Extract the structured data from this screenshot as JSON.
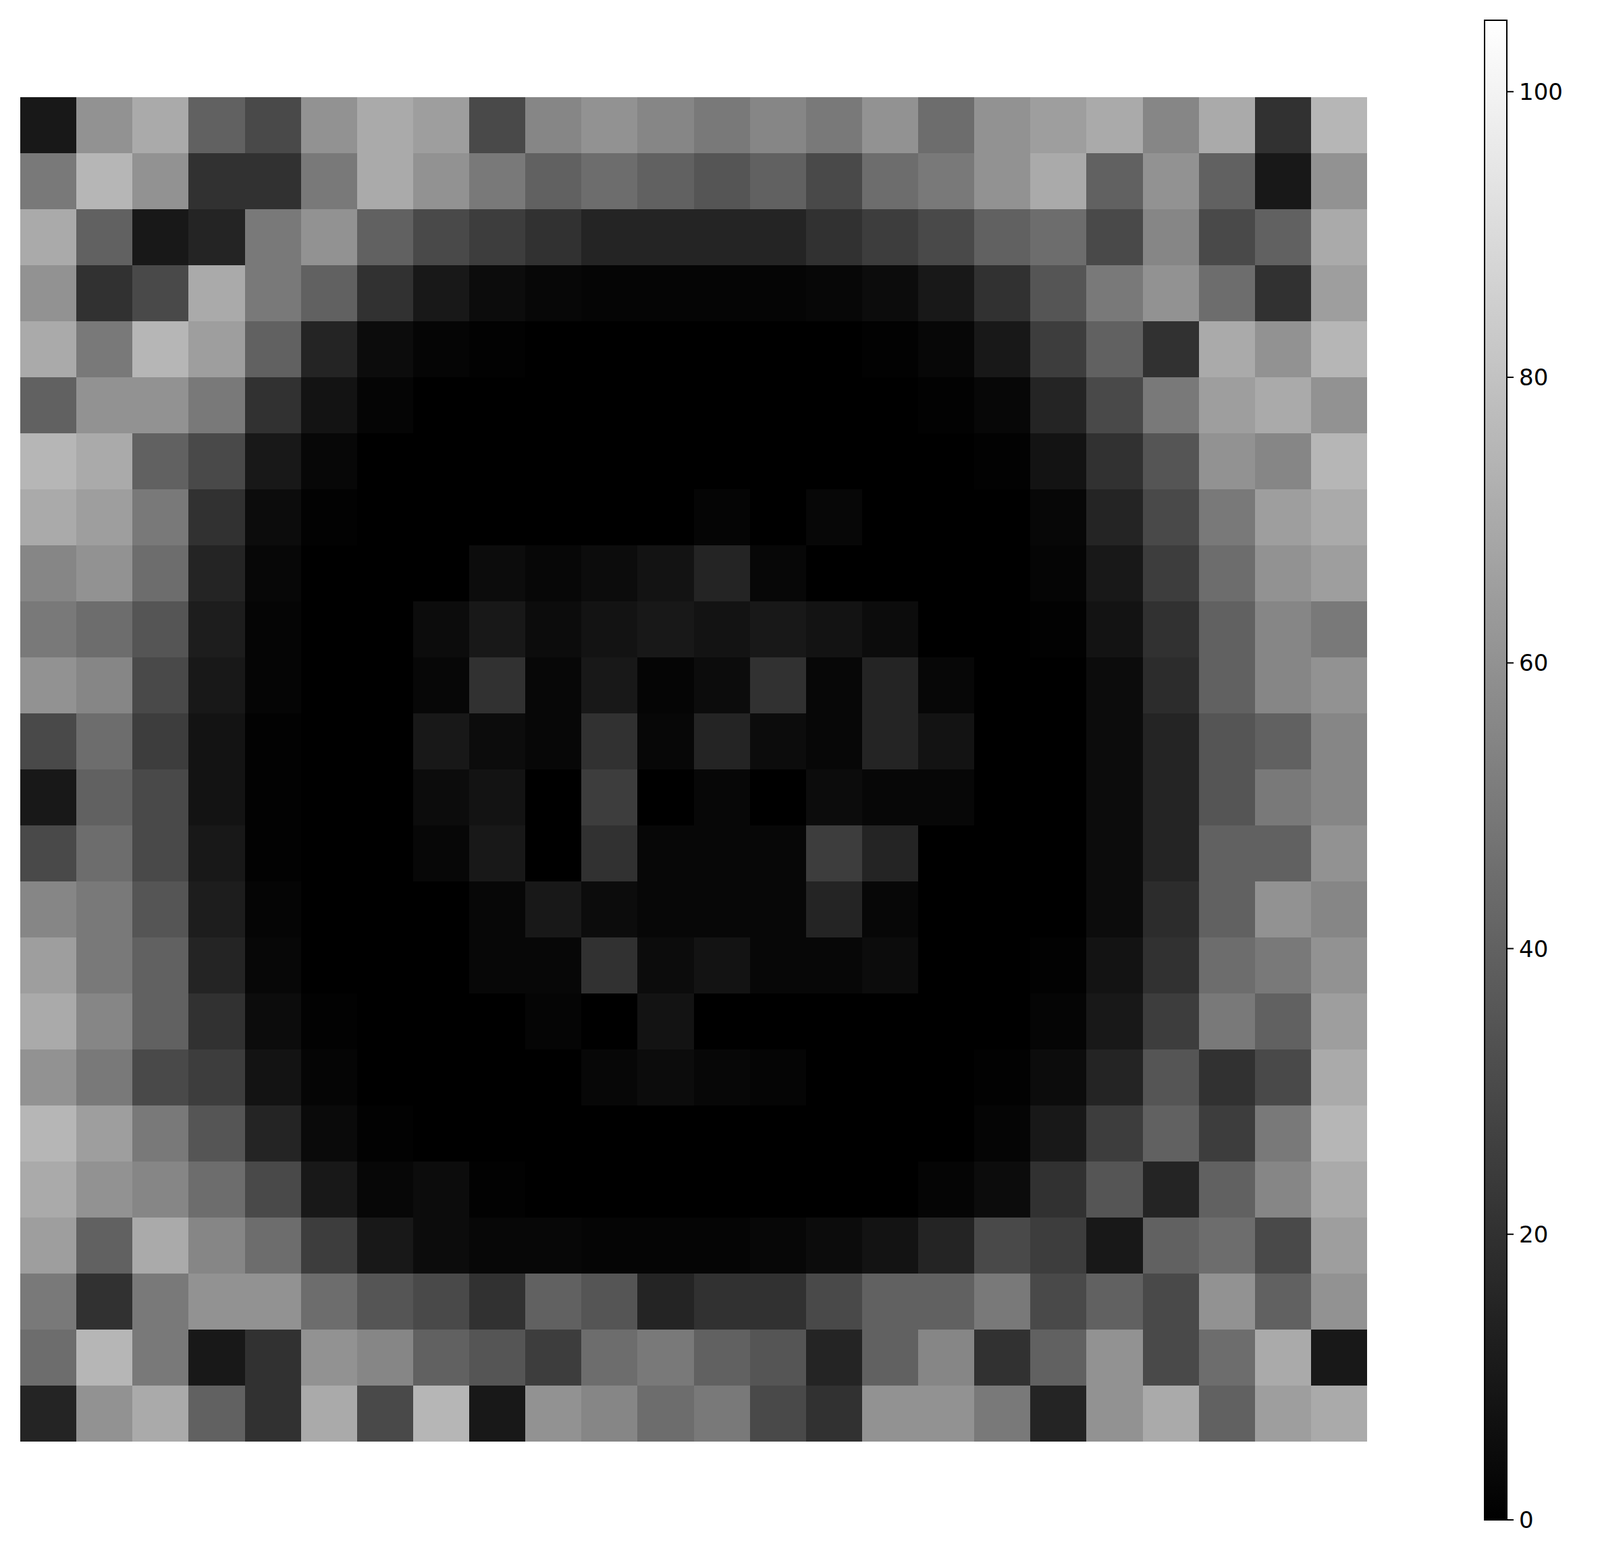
{
  "chart_data": {
    "type": "heatmap",
    "color": "gray",
    "tick_labels": false,
    "zlim": [
      0,
      105
    ],
    "zticks": [
      0,
      20,
      40,
      60,
      80,
      100
    ],
    "cells": [
      [
        10,
        60,
        70,
        40,
        30,
        60,
        70,
        65,
        30,
        55,
        60,
        55,
        50,
        55,
        50,
        60,
        45,
        60,
        65,
        70,
        55,
        70,
        20,
        75
      ],
      [
        50,
        75,
        60,
        20,
        20,
        50,
        70,
        60,
        50,
        40,
        45,
        40,
        35,
        40,
        30,
        45,
        50,
        60,
        70,
        40,
        60,
        40,
        10,
        60
      ],
      [
        70,
        40,
        10,
        15,
        50,
        60,
        40,
        30,
        25,
        20,
        15,
        15,
        15,
        15,
        20,
        25,
        30,
        40,
        45,
        30,
        55,
        30,
        40,
        70
      ],
      [
        60,
        20,
        30,
        70,
        50,
        40,
        20,
        10,
        5,
        3,
        2,
        2,
        2,
        2,
        3,
        5,
        10,
        20,
        35,
        50,
        60,
        45,
        20,
        65
      ],
      [
        70,
        50,
        75,
        65,
        40,
        15,
        5,
        2,
        1,
        0,
        0,
        0,
        0,
        0,
        0,
        1,
        3,
        10,
        25,
        40,
        20,
        70,
        60,
        75
      ],
      [
        40,
        60,
        60,
        50,
        20,
        8,
        2,
        0,
        0,
        0,
        0,
        0,
        0,
        0,
        0,
        0,
        1,
        3,
        15,
        30,
        50,
        65,
        70,
        60
      ],
      [
        75,
        70,
        40,
        30,
        10,
        3,
        0,
        0,
        0,
        0,
        0,
        0,
        0,
        0,
        0,
        0,
        0,
        1,
        8,
        20,
        35,
        60,
        55,
        75
      ],
      [
        70,
        65,
        50,
        20,
        5,
        1,
        0,
        0,
        0,
        0,
        0,
        0,
        2,
        0,
        3,
        0,
        0,
        0,
        3,
        15,
        30,
        50,
        65,
        70
      ],
      [
        55,
        60,
        45,
        15,
        3,
        0,
        0,
        0,
        5,
        3,
        5,
        8,
        15,
        3,
        0,
        0,
        0,
        0,
        2,
        10,
        25,
        45,
        60,
        65
      ],
      [
        50,
        45,
        35,
        12,
        2,
        0,
        0,
        5,
        10,
        5,
        8,
        10,
        8,
        10,
        8,
        5,
        0,
        0,
        1,
        8,
        20,
        40,
        55,
        50
      ],
      [
        60,
        55,
        30,
        10,
        2,
        0,
        0,
        3,
        20,
        3,
        10,
        2,
        5,
        20,
        3,
        15,
        3,
        0,
        0,
        5,
        18,
        40,
        55,
        60
      ],
      [
        30,
        45,
        25,
        8,
        1,
        0,
        0,
        10,
        5,
        3,
        20,
        3,
        15,
        5,
        3,
        15,
        8,
        0,
        0,
        5,
        15,
        35,
        40,
        55
      ],
      [
        10,
        40,
        30,
        8,
        1,
        0,
        0,
        5,
        8,
        0,
        25,
        0,
        3,
        0,
        5,
        3,
        3,
        0,
        0,
        5,
        15,
        35,
        50,
        55
      ],
      [
        30,
        45,
        30,
        10,
        1,
        0,
        0,
        3,
        10,
        0,
        20,
        3,
        3,
        3,
        25,
        15,
        0,
        0,
        0,
        5,
        15,
        40,
        40,
        60
      ],
      [
        55,
        50,
        35,
        12,
        2,
        0,
        0,
        0,
        3,
        10,
        5,
        3,
        3,
        3,
        15,
        3,
        0,
        0,
        0,
        5,
        18,
        40,
        60,
        55
      ],
      [
        65,
        50,
        40,
        15,
        3,
        0,
        0,
        0,
        3,
        3,
        20,
        5,
        8,
        3,
        3,
        5,
        0,
        0,
        1,
        8,
        20,
        45,
        50,
        60
      ],
      [
        70,
        55,
        40,
        20,
        5,
        1,
        0,
        0,
        0,
        2,
        0,
        8,
        0,
        0,
        0,
        0,
        0,
        0,
        2,
        10,
        25,
        50,
        40,
        65
      ],
      [
        60,
        50,
        30,
        25,
        8,
        2,
        0,
        0,
        0,
        0,
        3,
        5,
        3,
        2,
        0,
        0,
        0,
        1,
        5,
        15,
        35,
        20,
        30,
        70
      ],
      [
        75,
        65,
        50,
        35,
        15,
        4,
        1,
        0,
        0,
        0,
        0,
        0,
        0,
        0,
        0,
        0,
        0,
        2,
        10,
        25,
        40,
        25,
        50,
        75
      ],
      [
        70,
        60,
        55,
        45,
        30,
        10,
        3,
        5,
        1,
        0,
        0,
        0,
        0,
        0,
        0,
        0,
        2,
        5,
        20,
        35,
        15,
        40,
        55,
        70
      ],
      [
        65,
        40,
        70,
        55,
        45,
        25,
        10,
        5,
        3,
        3,
        2,
        2,
        2,
        3,
        5,
        8,
        15,
        30,
        25,
        10,
        40,
        45,
        30,
        65
      ],
      [
        50,
        20,
        50,
        60,
        60,
        45,
        35,
        30,
        20,
        40,
        35,
        15,
        20,
        20,
        30,
        40,
        40,
        50,
        30,
        40,
        30,
        60,
        40,
        60
      ],
      [
        45,
        75,
        50,
        10,
        20,
        60,
        55,
        40,
        35,
        25,
        45,
        50,
        40,
        35,
        15,
        40,
        55,
        20,
        40,
        60,
        30,
        45,
        70,
        10
      ],
      [
        15,
        60,
        70,
        40,
        20,
        70,
        30,
        75,
        10,
        60,
        55,
        45,
        50,
        30,
        20,
        60,
        60,
        50,
        15,
        60,
        70,
        40,
        65,
        70
      ]
    ]
  }
}
